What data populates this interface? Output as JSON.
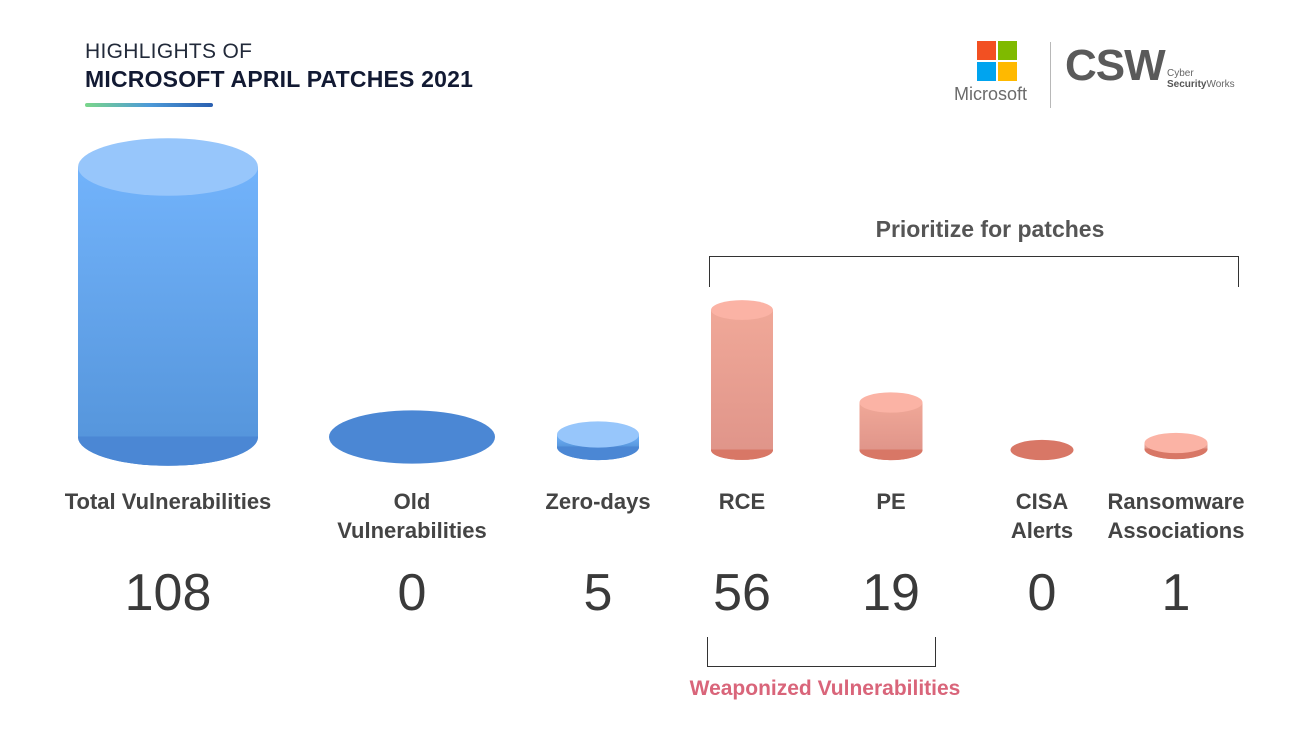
{
  "header": {
    "pretitle": "HIGHLIGHTS OF",
    "title": "MICROSOFT APRIL PATCHES 2021"
  },
  "logos": {
    "microsoft_label": "Microsoft",
    "csw_mark": "CSW",
    "csw_sub_line1": "Cyber",
    "csw_sub_line2_bold": "Security",
    "csw_sub_line2": "Works",
    "ms_colors": [
      "#f25022",
      "#7fba00",
      "#00a4ef",
      "#ffb900"
    ]
  },
  "chart_data": {
    "type": "bar",
    "title": "MICROSOFT APRIL PATCHES 2021",
    "categories": [
      [
        "Total Vulnerabilities"
      ],
      [
        "Old",
        "Vulnerabilities"
      ],
      [
        "Zero-days"
      ],
      [
        "RCE"
      ],
      [
        "PE"
      ],
      [
        "CISA",
        "Alerts"
      ],
      [
        "Ransomware",
        "Associations"
      ]
    ],
    "values": [
      108,
      0,
      5,
      56,
      19,
      0,
      1
    ],
    "value_labels": [
      "108",
      "0",
      "5",
      "56",
      "19",
      "0",
      "1"
    ],
    "colors": [
      "blue",
      "blue",
      "blue",
      "salmon",
      "salmon",
      "salmon",
      "salmon"
    ],
    "palette": {
      "blue_top": "#97c6fb",
      "blue_body_top": "#72b3fb",
      "blue_body_bottom": "#5696dc",
      "blue_bottom": "#4b87d4",
      "salmon_top": "#fbb3a5",
      "salmon_body_top": "#f0a898",
      "salmon_body_bottom": "#e0958a",
      "salmon_bottom": "#d87766"
    },
    "annotations": {
      "prioritize": "Prioritize for patches",
      "weaponized": "Weaponized Vulnerabilities"
    }
  }
}
